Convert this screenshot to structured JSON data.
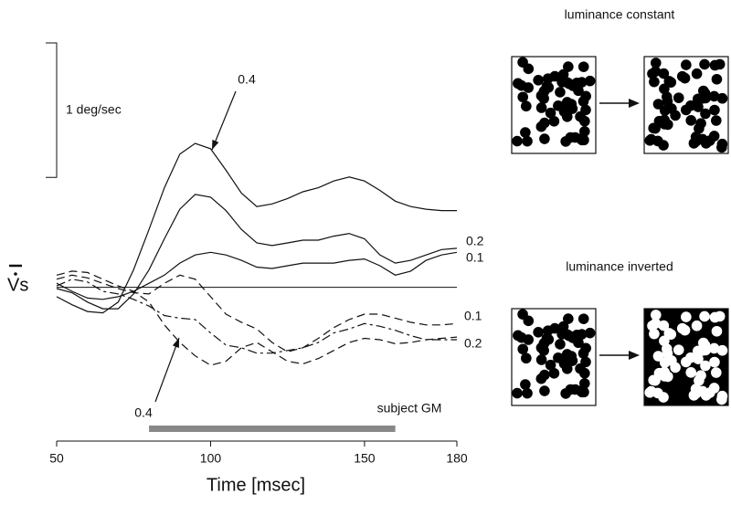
{
  "chart_data": {
    "type": "line",
    "xlabel": "Time [msec]",
    "ylabel": "Vs",
    "xlim": [
      50,
      180
    ],
    "xticks": [
      50,
      100,
      150,
      180
    ],
    "ylim": [
      -0.8,
      2.0
    ],
    "scale_bar": {
      "label": "1 deg/sec",
      "value": 1
    },
    "stimulus": {
      "label": "subject GM",
      "range": [
        80,
        160
      ],
      "color": "#888888"
    },
    "x": [
      50,
      55,
      60,
      65,
      70,
      75,
      80,
      85,
      90,
      95,
      100,
      105,
      110,
      115,
      120,
      125,
      130,
      135,
      140,
      145,
      150,
      155,
      160,
      165,
      170,
      175,
      180
    ],
    "series": [
      {
        "name": "0.4",
        "color": "#111111",
        "style": "solid",
        "values": [
          -0.07,
          -0.13,
          -0.18,
          -0.19,
          -0.11,
          0.13,
          0.43,
          0.74,
          0.99,
          1.07,
          1.03,
          0.87,
          0.7,
          0.6,
          0.62,
          0.66,
          0.71,
          0.74,
          0.79,
          0.82,
          0.79,
          0.72,
          0.64,
          0.6,
          0.58,
          0.57,
          0.57
        ]
      },
      {
        "name": "0.2",
        "color": "#111111",
        "style": "solid",
        "values": [
          -0.01,
          -0.04,
          -0.11,
          -0.16,
          -0.16,
          -0.05,
          0.13,
          0.36,
          0.58,
          0.69,
          0.67,
          0.57,
          0.43,
          0.33,
          0.31,
          0.33,
          0.35,
          0.35,
          0.38,
          0.4,
          0.36,
          0.24,
          0.18,
          0.2,
          0.24,
          0.28,
          0.29
        ]
      },
      {
        "name": "0.1",
        "color": "#111111",
        "style": "solid",
        "values": [
          0.03,
          -0.03,
          -0.08,
          -0.09,
          -0.07,
          -0.03,
          0.03,
          0.09,
          0.18,
          0.24,
          0.26,
          0.24,
          0.2,
          0.15,
          0.14,
          0.16,
          0.18,
          0.18,
          0.18,
          0.2,
          0.21,
          0.16,
          0.09,
          0.12,
          0.2,
          0.24,
          0.26
        ]
      },
      {
        "name": "0.4",
        "color": "#111111",
        "style": "dashed",
        "values": [
          0.09,
          0.12,
          0.11,
          0.06,
          0.01,
          -0.03,
          -0.11,
          -0.28,
          -0.41,
          -0.51,
          -0.58,
          -0.55,
          -0.45,
          -0.41,
          -0.48,
          -0.55,
          -0.57,
          -0.53,
          -0.47,
          -0.41,
          -0.38,
          -0.39,
          -0.42,
          -0.41,
          -0.39,
          -0.38,
          -0.37
        ]
      },
      {
        "name": "0.1",
        "color": "#111111",
        "style": "dashed",
        "values": [
          0.06,
          0.09,
          0.07,
          0.03,
          -0.01,
          -0.04,
          -0.05,
          0.03,
          0.09,
          0.06,
          -0.07,
          -0.2,
          -0.26,
          -0.31,
          -0.41,
          -0.48,
          -0.45,
          -0.38,
          -0.3,
          -0.24,
          -0.2,
          -0.2,
          -0.23,
          -0.26,
          -0.28,
          -0.28,
          -0.27
        ]
      },
      {
        "name": "0.2",
        "color": "#111111",
        "style": "dashdot",
        "values": [
          0.01,
          0.06,
          0.04,
          -0.03,
          -0.05,
          -0.09,
          -0.14,
          -0.21,
          -0.23,
          -0.24,
          -0.34,
          -0.43,
          -0.45,
          -0.49,
          -0.49,
          -0.47,
          -0.45,
          -0.41,
          -0.34,
          -0.31,
          -0.27,
          -0.29,
          -0.32,
          -0.36,
          -0.39,
          -0.39,
          -0.39
        ]
      }
    ],
    "panels": [
      {
        "title": "luminance constant",
        "inverted": false
      },
      {
        "title": "luminance inverted",
        "inverted": true
      }
    ]
  }
}
